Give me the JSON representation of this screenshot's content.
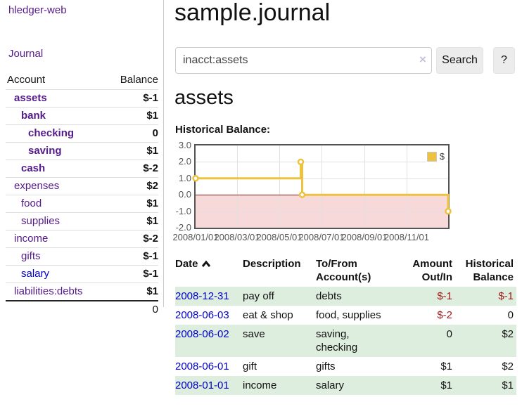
{
  "sidebar": {
    "brand": "hledger-web",
    "nav": {
      "journal": "Journal"
    },
    "accounts_table": {
      "headers": {
        "account": "Account",
        "balance": "Balance"
      },
      "rows": [
        {
          "label": "assets",
          "indent": 1,
          "bold": true,
          "color": "purple",
          "balance": "$-1",
          "bclass": "neg"
        },
        {
          "label": "bank",
          "indent": 2,
          "bold": true,
          "color": "purple",
          "balance": "$1",
          "bclass": ""
        },
        {
          "label": "checking",
          "indent": 3,
          "bold": true,
          "color": "purple",
          "balance": "0",
          "bclass": ""
        },
        {
          "label": "saving",
          "indent": 3,
          "bold": true,
          "color": "purple",
          "balance": "$1",
          "bclass": ""
        },
        {
          "label": "cash",
          "indent": 2,
          "bold": true,
          "color": "purple",
          "balance": "$-2",
          "bclass": "neg"
        },
        {
          "label": "expenses",
          "indent": 1,
          "bold": false,
          "color": "purple",
          "balance": "$2",
          "bclass": ""
        },
        {
          "label": "food",
          "indent": 2,
          "bold": false,
          "color": "purple",
          "balance": "$1",
          "bclass": ""
        },
        {
          "label": "supplies",
          "indent": 2,
          "bold": false,
          "color": "purple",
          "balance": "$1",
          "bclass": ""
        },
        {
          "label": "income",
          "indent": 1,
          "bold": false,
          "color": "purple",
          "balance": "$-2",
          "bclass": "negl"
        },
        {
          "label": "gifts",
          "indent": 2,
          "bold": false,
          "color": "purple",
          "balance": "$-1",
          "bclass": "negl"
        },
        {
          "label": "salary",
          "indent": 2,
          "bold": false,
          "color": "blue",
          "balance": "$-1",
          "bclass": "negl"
        },
        {
          "label": "liabilities:debts",
          "indent": 1,
          "bold": false,
          "color": "purple",
          "balance": "$1",
          "bclass": ""
        }
      ],
      "total": "0"
    }
  },
  "main": {
    "title": "sample.journal",
    "search": {
      "value": "inacct:assets",
      "clear_icon": "×",
      "search_button": "Search",
      "help_button": "?"
    },
    "account_heading": "assets",
    "chart_heading": "Historical Balance:",
    "register_table": {
      "headers": [
        "Date",
        "Description",
        "To/From Account(s)",
        "Amount Out/In",
        "Historical Balance"
      ],
      "rows": [
        {
          "date": "2008-12-31",
          "description": "pay off",
          "accounts": "debts",
          "amount": "$-1",
          "aclass": "neg",
          "balance": "$-1",
          "bclass": "neg"
        },
        {
          "date": "2008-06-03",
          "description": "eat & shop",
          "accounts": "food, supplies",
          "amount": "$-2",
          "aclass": "neg",
          "balance": "0",
          "bclass": ""
        },
        {
          "date": "2008-06-02",
          "description": "save",
          "accounts": "saving, checking",
          "amount": "0",
          "aclass": "",
          "balance": "$2",
          "bclass": ""
        },
        {
          "date": "2008-06-01",
          "description": "gift",
          "accounts": "gifts",
          "amount": "$1",
          "aclass": "",
          "balance": "$2",
          "bclass": ""
        },
        {
          "date": "2008-01-01",
          "description": "income",
          "accounts": "salary",
          "amount": "$1",
          "aclass": "",
          "balance": "$1",
          "bclass": ""
        }
      ]
    }
  },
  "chart_data": {
    "type": "line",
    "title": "Historical Balance:",
    "step": true,
    "series": [
      {
        "name": "$",
        "color": "#edc240",
        "points": [
          [
            "2008-01-01",
            1
          ],
          [
            "2008-06-01",
            2
          ],
          [
            "2008-06-03",
            0
          ],
          [
            "2008-12-31",
            -1
          ]
        ]
      }
    ],
    "xlim": [
      "2008-01-01",
      "2008-12-31"
    ],
    "ylim": [
      -2,
      3
    ],
    "y_ticks": [
      "3.0",
      "2.0",
      "1.0",
      "0.0",
      "-1.0",
      "-2.0"
    ],
    "x_ticks": [
      {
        "date": "2008-01-01",
        "label": "2008/01/01"
      },
      {
        "date": "2008-03-01",
        "label": "2008/03/01"
      },
      {
        "date": "2008-05-01",
        "label": "2008/05/01"
      },
      {
        "date": "2008-07-01",
        "label": "2008/07/01"
      },
      {
        "date": "2008-09-01",
        "label": "2008/09/01"
      },
      {
        "date": "2008-11-01",
        "label": "2008/11/01"
      }
    ],
    "legend": {
      "label": "$",
      "position": "top-right"
    },
    "grid": true,
    "zero_line_color": "#8b1a1a",
    "negative_fill": "#f7d9d9"
  },
  "colors": {
    "link_visited_purple": "#551a8b",
    "link_blue": "#0000cc",
    "negative": "#9d1a1a",
    "negative_light": "#b26b6b",
    "row_stripe_green": "#deeede",
    "chart_line": "#edc240",
    "plot_border": "#545454"
  }
}
